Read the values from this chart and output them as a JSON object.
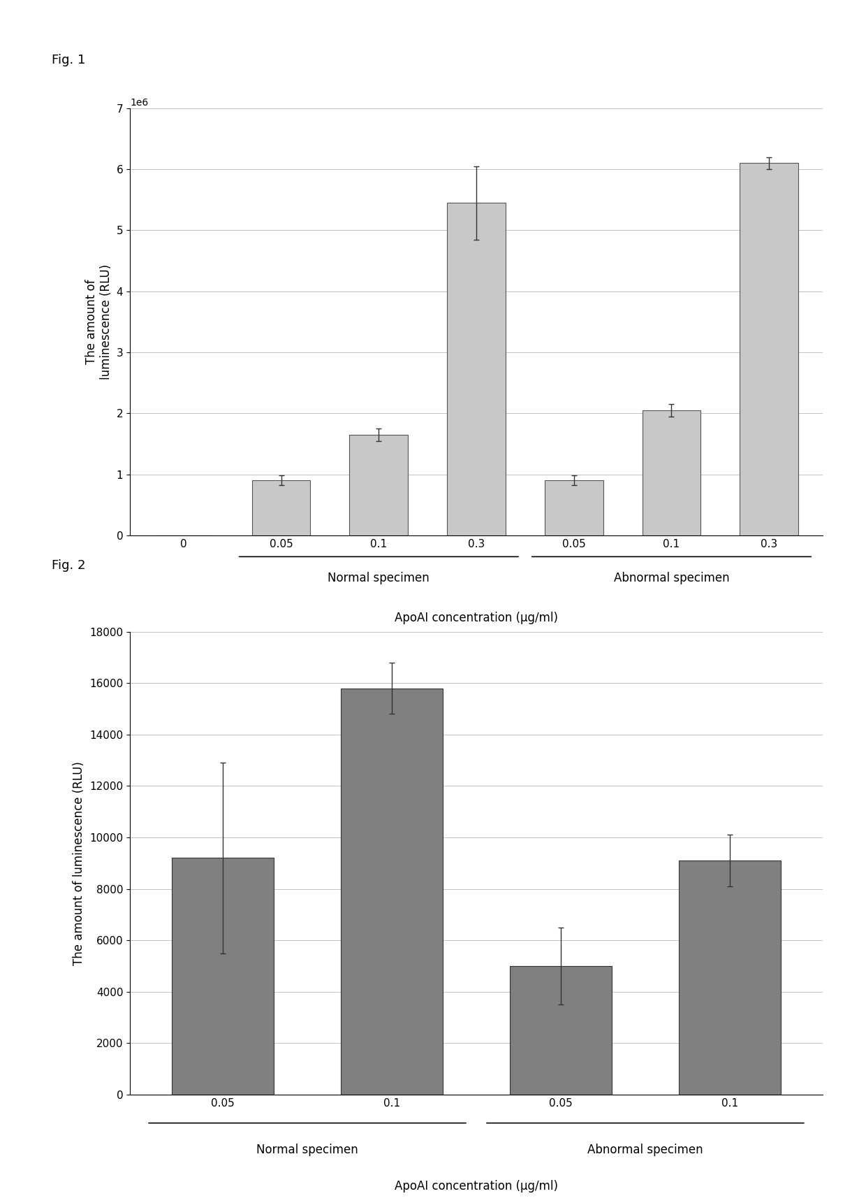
{
  "fig1": {
    "categories": [
      "0",
      "0.05",
      "0.1",
      "0.3",
      "0.05",
      "0.1",
      "0.3"
    ],
    "values": [
      0,
      900000,
      1650000,
      5450000,
      900000,
      2050000,
      6100000
    ],
    "errors": [
      0,
      80000,
      100000,
      600000,
      80000,
      100000,
      100000
    ],
    "bar_color": "#c8c8c8",
    "bar_edgecolor": "#555555",
    "group_labels": [
      "Normal specimen",
      "Abnormal specimen"
    ],
    "xlabel": "ApoAI concentration (μg/ml)",
    "ylabel": "The amount of\nluminescence (RLU)",
    "ylim": [
      0,
      7000000
    ],
    "yticks": [
      0,
      1000000,
      2000000,
      3000000,
      4000000,
      5000000,
      6000000,
      7000000
    ],
    "fig_label": "Fig. 1"
  },
  "fig2": {
    "categories": [
      "0.05",
      "0.1",
      "0.05",
      "0.1"
    ],
    "values": [
      9200,
      15800,
      5000,
      9100
    ],
    "errors": [
      3700,
      1000,
      1500,
      1000
    ],
    "bar_color": "#808080",
    "bar_edgecolor": "#333333",
    "group_labels": [
      "Normal specimen",
      "Abnormal specimen"
    ],
    "xlabel": "ApoAI concentration (μg/ml)",
    "ylabel": "The amount of luminescence (RLU)",
    "ylim": [
      0,
      18000
    ],
    "yticks": [
      0,
      2000,
      4000,
      6000,
      8000,
      10000,
      12000,
      14000,
      16000,
      18000
    ],
    "fig_label": "Fig. 2"
  },
  "background_color": "#ffffff",
  "font_color": "#000000"
}
